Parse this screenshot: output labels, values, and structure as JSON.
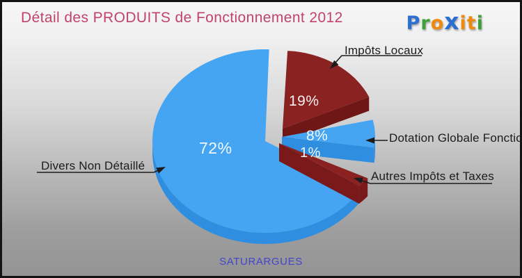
{
  "title": "Détail des PRODUITS de Fonctionnement 2012",
  "footer": "SATURARGUES",
  "logo": {
    "name": "Proxiti",
    "letters": [
      {
        "ch": "P",
        "color": "#2c6fd0"
      },
      {
        "ch": "r",
        "color": "#3da03a"
      },
      {
        "ch": "o",
        "color": "#ee8a0e"
      },
      {
        "ch": "x",
        "color": "#2c6fd0"
      },
      {
        "ch": "i",
        "color": "#ee8a0e"
      },
      {
        "ch": "t",
        "color": "#ee8a0e"
      },
      {
        "ch": "i",
        "color": "#3da03a"
      }
    ]
  },
  "colors": {
    "title": "#c1436a",
    "footer": "#4444cb",
    "callout_text": "#1c1c1c",
    "percent_text": "#f4f8fb",
    "background_top": "#f6f6f6",
    "background_bottom": "#949494"
  },
  "chart_data": {
    "type": "pie",
    "title": "Détail des PRODUITS de Fonctionnement 2012",
    "region_label": "SATURARGUES",
    "unit": "percent",
    "style": "3d-exploded",
    "slices": [
      {
        "label": "Impôts Locaux",
        "value": 19,
        "percent_text": "19%",
        "color": "#8b2222",
        "side_color": "#6f1616"
      },
      {
        "label": "Dotation Globale Fonctionnement",
        "value": 8,
        "percent_text": "8%",
        "color": "#45a5f2",
        "side_color": "#2f8ee0"
      },
      {
        "label": "Autres Impôts et Taxes",
        "value": 1,
        "percent_text": "1%",
        "color": "#8b2222",
        "side_color": "#7a1919"
      },
      {
        "label": "Divers Non Détaillé",
        "value": 72,
        "percent_text": "72%",
        "color": "#45a5f2",
        "side_color": "#2f8ee0"
      }
    ]
  }
}
